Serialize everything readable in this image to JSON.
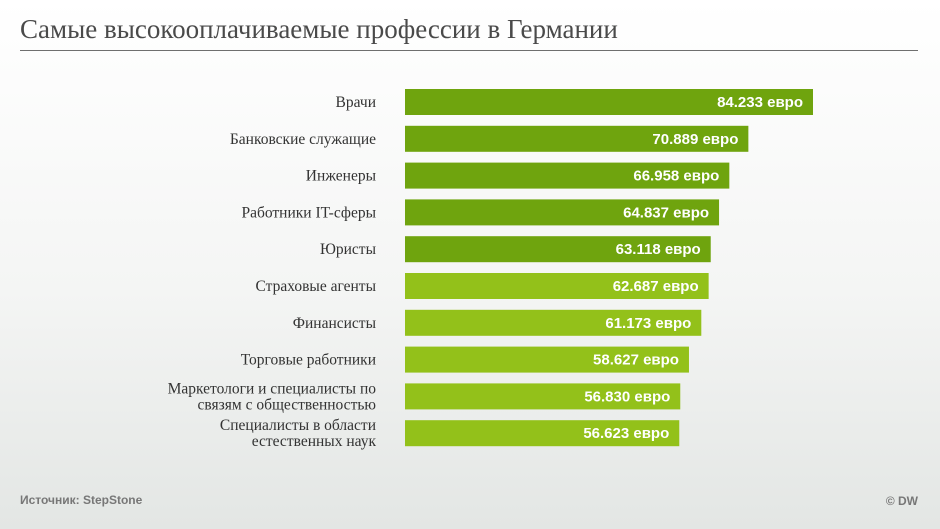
{
  "header": {
    "title": "Самые высокооплачиваемые профессии в Германии"
  },
  "footer": {
    "source": "Источник: StepStone",
    "copyright": "© DW"
  },
  "colors": {
    "dark_green": "#6fa40e",
    "light_green": "#93c11a"
  },
  "chart_data": {
    "type": "bar",
    "orientation": "horizontal",
    "title": "Самые высокооплачиваемые профессии в Германии",
    "categories": [
      [
        "Врачи"
      ],
      [
        "Банковские служащие"
      ],
      [
        "Инженеры"
      ],
      [
        "Работники IT-сферы"
      ],
      [
        "Юристы"
      ],
      [
        "Страховые агенты"
      ],
      [
        "Финансисты"
      ],
      [
        "Торговые работники"
      ],
      [
        "Маркетологи и специалисты по",
        "связям с общественностью"
      ],
      [
        "Специалисты в области",
        "естественных наук"
      ]
    ],
    "values": [
      84233,
      70889,
      66958,
      64837,
      63118,
      62687,
      61173,
      58627,
      56830,
      56623
    ],
    "value_labels": [
      "84.233 евро",
      "70.889 евро",
      "66.958 евро",
      "64.837 евро",
      "63.118 евро",
      "62.687 евро",
      "61.173 евро",
      "58.627 евро",
      "56.830 евро",
      "56.623 евро"
    ],
    "unit": "евро",
    "grid": false,
    "legend": "none"
  }
}
